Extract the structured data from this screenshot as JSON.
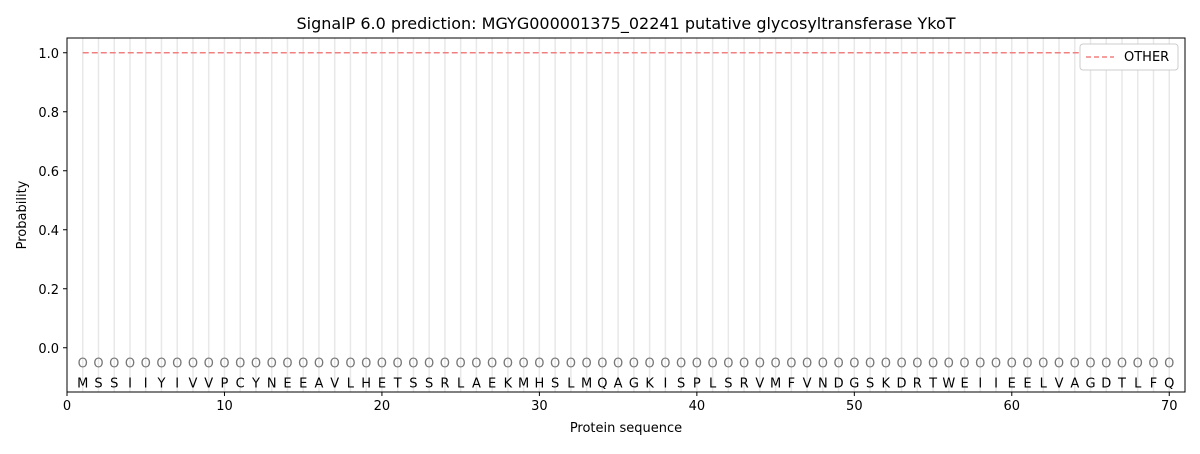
{
  "chart_data": {
    "type": "line",
    "title": "SignalP 6.0 prediction: MGYG000001375_02241 putative glycosyltransferase YkoT",
    "xlabel": "Protein sequence",
    "ylabel": "Probability",
    "xlim": [
      0,
      71
    ],
    "ylim": [
      -0.15,
      1.05
    ],
    "xticks": [
      0,
      10,
      20,
      30,
      40,
      50,
      60,
      70
    ],
    "yticks": [
      0.0,
      0.2,
      0.4,
      0.6,
      0.8,
      1.0
    ],
    "ytick_labels": [
      "0.0",
      "0.2",
      "0.4",
      "0.6",
      "0.8",
      "1.0"
    ],
    "grid": "vertical lines at each residue",
    "legend_position": "top-right",
    "sequence": [
      "M",
      "S",
      "S",
      "I",
      "I",
      "Y",
      "I",
      "V",
      "V",
      "P",
      "C",
      "Y",
      "N",
      "E",
      "E",
      "A",
      "V",
      "L",
      "H",
      "E",
      "T",
      "S",
      "S",
      "R",
      "L",
      "A",
      "E",
      "K",
      "M",
      "H",
      "S",
      "L",
      "M",
      "Q",
      "A",
      "G",
      "K",
      "I",
      "S",
      "P",
      "L",
      "S",
      "R",
      "V",
      "M",
      "F",
      "V",
      "N",
      "D",
      "G",
      "S",
      "K",
      "D",
      "R",
      "T",
      "W",
      "E",
      "I",
      "I",
      "E",
      "E",
      "L",
      "V",
      "A",
      "G",
      "D",
      "T",
      "L",
      "F",
      "Q"
    ],
    "labels_per_residue": "O",
    "series": [
      {
        "name": "OTHER",
        "color": "#f08080",
        "style": "dashed",
        "x_range": [
          1,
          70
        ],
        "value": 1.0
      }
    ]
  }
}
